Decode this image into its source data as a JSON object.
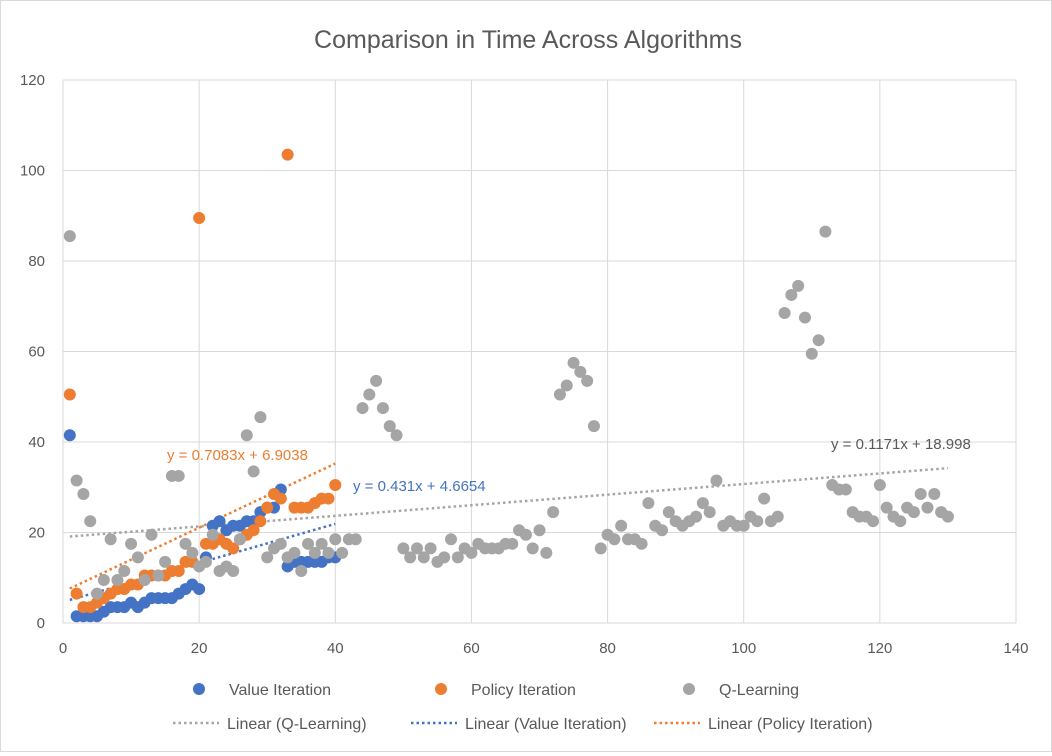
{
  "chart_data": {
    "type": "scatter",
    "title": "Comparison in Time Across Algorithms",
    "xlabel": "",
    "ylabel": "",
    "xlim": [
      0,
      140
    ],
    "ylim": [
      0,
      120
    ],
    "x_ticks": [
      0,
      20,
      40,
      60,
      80,
      100,
      120,
      140
    ],
    "y_ticks": [
      0,
      20,
      40,
      60,
      80,
      100,
      120
    ],
    "grid": true,
    "legend_position": "bottom",
    "series": [
      {
        "name": "Value Iteration",
        "color": "#4472C4",
        "x": [
          1,
          2,
          3,
          4,
          5,
          6,
          7,
          8,
          9,
          10,
          11,
          12,
          13,
          14,
          15,
          16,
          17,
          18,
          19,
          20,
          21,
          22,
          23,
          24,
          25,
          26,
          27,
          28,
          29,
          30,
          31,
          32,
          33,
          34,
          35,
          36,
          37,
          38,
          39,
          40
        ],
        "y": [
          41.5,
          1.5,
          1.5,
          1.5,
          1.5,
          2.5,
          3.5,
          3.5,
          3.5,
          4.5,
          3.5,
          4.5,
          5.5,
          5.5,
          5.5,
          5.5,
          6.5,
          7.5,
          8.5,
          7.5,
          14.5,
          21.5,
          22.5,
          20.5,
          21.5,
          21.5,
          22.5,
          22.5,
          24.5,
          25.5,
          25.5,
          29.5,
          12.5,
          13.5,
          13.5,
          13.5,
          13.5,
          13.5,
          14.5,
          14.5
        ]
      },
      {
        "name": "Policy Iteration",
        "color": "#ED7D31",
        "x": [
          1,
          2,
          3,
          4,
          5,
          6,
          7,
          8,
          9,
          10,
          11,
          12,
          13,
          14,
          15,
          16,
          17,
          18,
          19,
          20,
          21,
          22,
          23,
          24,
          25,
          26,
          27,
          28,
          29,
          30,
          31,
          32,
          33,
          34,
          35,
          36,
          37,
          38,
          39,
          40
        ],
        "y": [
          50.5,
          6.5,
          3.5,
          3.5,
          4.5,
          5.5,
          6.5,
          7.5,
          7.5,
          8.5,
          8.5,
          10.5,
          10.5,
          10.5,
          10.5,
          11.5,
          11.5,
          13.5,
          13.5,
          89.5,
          17.5,
          17.5,
          18.5,
          17.5,
          16.5,
          18.5,
          19.5,
          20.5,
          22.5,
          25.5,
          28.5,
          27.5,
          103.5,
          25.5,
          25.5,
          25.5,
          26.5,
          27.5,
          27.5,
          30.5
        ]
      },
      {
        "name": "Q-Learning",
        "color": "#A5A5A5",
        "x": [
          1,
          2,
          3,
          4,
          5,
          6,
          7,
          8,
          9,
          10,
          11,
          12,
          13,
          14,
          15,
          16,
          17,
          18,
          19,
          20,
          21,
          22,
          23,
          24,
          25,
          26,
          27,
          28,
          29,
          30,
          31,
          32,
          33,
          34,
          35,
          36,
          37,
          38,
          39,
          40,
          41,
          42,
          43,
          44,
          45,
          46,
          47,
          48,
          49,
          50,
          51,
          52,
          53,
          54,
          55,
          56,
          57,
          58,
          59,
          60,
          61,
          62,
          63,
          64,
          65,
          66,
          67,
          68,
          69,
          70,
          71,
          72,
          73,
          74,
          75,
          76,
          77,
          78,
          79,
          80,
          81,
          82,
          83,
          84,
          85,
          86,
          87,
          88,
          89,
          90,
          91,
          92,
          93,
          94,
          95,
          96,
          97,
          98,
          99,
          100,
          101,
          102,
          103,
          104,
          105,
          106,
          107,
          108,
          109,
          110,
          111,
          112,
          113,
          114,
          115,
          116,
          117,
          118,
          119,
          120,
          121,
          122,
          123,
          124,
          125,
          126,
          127,
          128,
          129,
          130
        ],
        "y": [
          85.5,
          31.5,
          28.5,
          22.5,
          6.5,
          9.5,
          18.5,
          9.5,
          11.5,
          17.5,
          14.5,
          9.5,
          19.5,
          10.5,
          13.5,
          32.5,
          32.5,
          17.5,
          15.5,
          12.5,
          13.5,
          19.5,
          11.5,
          12.5,
          11.5,
          18.5,
          41.5,
          33.5,
          45.5,
          14.5,
          16.5,
          17.5,
          14.5,
          15.5,
          11.5,
          17.5,
          15.5,
          17.5,
          15.5,
          18.5,
          15.5,
          18.5,
          18.5,
          47.5,
          50.5,
          53.5,
          47.5,
          43.5,
          41.5,
          16.5,
          14.5,
          16.5,
          14.5,
          16.5,
          13.5,
          14.5,
          18.5,
          14.5,
          16.5,
          15.5,
          17.5,
          16.5,
          16.5,
          16.5,
          17.5,
          17.5,
          20.5,
          19.5,
          16.5,
          20.5,
          15.5,
          24.5,
          50.5,
          52.5,
          57.5,
          55.5,
          53.5,
          43.5,
          16.5,
          19.5,
          18.5,
          21.5,
          18.5,
          18.5,
          17.5,
          26.5,
          21.5,
          20.5,
          24.5,
          22.5,
          21.5,
          22.5,
          23.5,
          26.5,
          24.5,
          31.5,
          21.5,
          22.5,
          21.5,
          21.5,
          23.5,
          22.5,
          27.5,
          22.5,
          23.5,
          68.5,
          72.5,
          74.5,
          67.5,
          59.5,
          62.5,
          86.5,
          30.5,
          29.5,
          29.5,
          24.5,
          23.5,
          23.5,
          22.5,
          30.5,
          25.5,
          23.5,
          22.5,
          25.5,
          24.5,
          28.5,
          25.5,
          28.5,
          24.5,
          23.5
        ]
      }
    ],
    "trendlines": [
      {
        "name": "Linear (Q-Learning)",
        "color": "#A5A5A5",
        "slope": 0.1171,
        "intercept": 18.998,
        "x_range": [
          1,
          130
        ],
        "equation": "y = 0.1171x + 18.998"
      },
      {
        "name": "Linear (Value Iteration)",
        "color": "#4472C4",
        "slope": 0.431,
        "intercept": 4.6654,
        "x_range": [
          1,
          40
        ],
        "equation": "y = 0.431x + 4.6654"
      },
      {
        "name": "Linear (Policy Iteration)",
        "color": "#ED7D31",
        "slope": 0.7083,
        "intercept": 6.9038,
        "x_range": [
          1,
          40
        ],
        "equation": "y = 0.7083x + 6.9038"
      }
    ]
  }
}
